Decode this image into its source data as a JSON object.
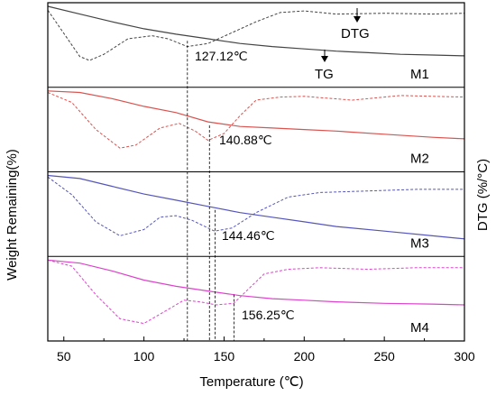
{
  "chart_data": {
    "type": "line",
    "xlabel": "Temperature (℃)",
    "ylabel_left": "Weight Remaining(%)",
    "ylabel_right": "DTG (%/°C)",
    "xlim": [
      40,
      300
    ],
    "xticks": [
      50,
      100,
      150,
      200,
      250,
      300
    ],
    "colors": {
      "M1": "#444444",
      "M2": "#d9534f",
      "M3": "#5555bb",
      "M4": "#dd44cc"
    },
    "series_labels": {
      "M1": "M1",
      "M2": "M2",
      "M3": "M3",
      "M4": "M4"
    },
    "annotations": {
      "dtg_label": "DTG",
      "tg_label": "TG",
      "peaks": [
        {
          "sample": "M1",
          "x": 127.12,
          "label": "127.12℃"
        },
        {
          "sample": "M2",
          "x": 140.88,
          "label": "140.88℃"
        },
        {
          "sample": "M3",
          "x": 144.46,
          "label": "144.46℃"
        },
        {
          "sample": "M4",
          "x": 156.25,
          "label": "156.25℃"
        }
      ]
    },
    "panels": [
      {
        "name": "M1",
        "tg": {
          "x": [
            40,
            60,
            80,
            100,
            120,
            140,
            160,
            180,
            200,
            220,
            240,
            260,
            280,
            300
          ],
          "y": [
            1.0,
            0.9,
            0.8,
            0.71,
            0.64,
            0.58,
            0.52,
            0.48,
            0.45,
            0.42,
            0.4,
            0.38,
            0.37,
            0.36
          ]
        },
        "dtg": {
          "x": [
            40,
            50,
            60,
            66,
            75,
            90,
            105,
            115,
            127,
            140,
            155,
            170,
            185,
            200,
            220,
            250,
            280,
            300
          ],
          "y": [
            0.95,
            0.65,
            0.35,
            0.3,
            0.38,
            0.58,
            0.62,
            0.58,
            0.48,
            0.52,
            0.66,
            0.8,
            0.92,
            0.94,
            0.9,
            0.91,
            0.9,
            0.91
          ]
        }
      },
      {
        "name": "M2",
        "tg": {
          "x": [
            40,
            60,
            80,
            100,
            120,
            140,
            160,
            180,
            200,
            220,
            250,
            280,
            300
          ],
          "y": [
            1.0,
            0.98,
            0.9,
            0.8,
            0.72,
            0.6,
            0.54,
            0.52,
            0.5,
            0.48,
            0.44,
            0.4,
            0.38
          ]
        },
        "dtg": {
          "x": [
            40,
            55,
            70,
            85,
            95,
            110,
            122,
            132,
            140,
            150,
            160,
            170,
            185,
            200,
            230,
            260,
            300
          ],
          "y": [
            0.98,
            0.85,
            0.5,
            0.26,
            0.3,
            0.52,
            0.58,
            0.48,
            0.36,
            0.45,
            0.68,
            0.88,
            0.92,
            0.93,
            0.88,
            0.94,
            0.92
          ]
        }
      },
      {
        "name": "M3",
        "tg": {
          "x": [
            40,
            60,
            80,
            100,
            120,
            140,
            160,
            180,
            200,
            220,
            250,
            280,
            300
          ],
          "y": [
            1.0,
            0.96,
            0.86,
            0.76,
            0.68,
            0.6,
            0.52,
            0.46,
            0.4,
            0.34,
            0.28,
            0.22,
            0.18
          ]
        },
        "dtg": {
          "x": [
            40,
            55,
            70,
            85,
            100,
            110,
            120,
            130,
            144,
            155,
            170,
            190,
            210,
            240,
            270,
            300
          ],
          "y": [
            0.98,
            0.75,
            0.4,
            0.22,
            0.3,
            0.46,
            0.48,
            0.42,
            0.28,
            0.32,
            0.52,
            0.72,
            0.78,
            0.8,
            0.82,
            0.82
          ]
        }
      },
      {
        "name": "M4",
        "tg": {
          "x": [
            40,
            60,
            80,
            100,
            120,
            140,
            160,
            180,
            200,
            220,
            250,
            280,
            300
          ],
          "y": [
            1.0,
            0.96,
            0.86,
            0.74,
            0.66,
            0.6,
            0.54,
            0.5,
            0.48,
            0.46,
            0.44,
            0.43,
            0.42
          ]
        },
        "dtg": {
          "x": [
            40,
            55,
            70,
            85,
            100,
            115,
            125,
            135,
            145,
            156,
            165,
            175,
            190,
            210,
            240,
            270,
            300
          ],
          "y": [
            1.0,
            0.92,
            0.55,
            0.24,
            0.18,
            0.36,
            0.48,
            0.46,
            0.42,
            0.44,
            0.62,
            0.82,
            0.88,
            0.9,
            0.88,
            0.9,
            0.9
          ]
        }
      }
    ]
  }
}
